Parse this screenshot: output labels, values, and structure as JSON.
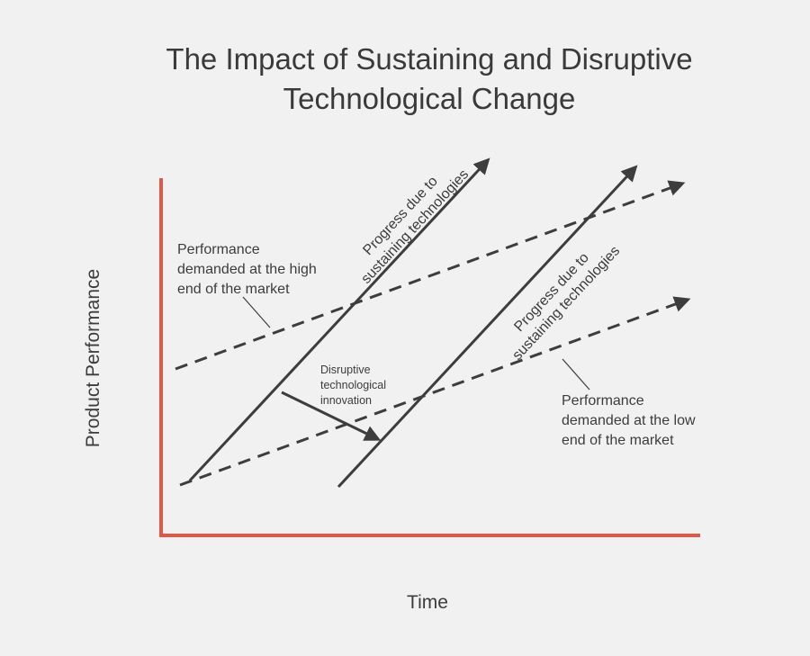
{
  "title": {
    "line1": "The Impact of Sustaining and Disruptive",
    "line2": "Technological Change"
  },
  "axes": {
    "x_label": "Time",
    "y_label": "Product Performance",
    "color": "#e0584a"
  },
  "labels": {
    "high_end": [
      "Performance",
      "demanded at the high",
      "end of the market"
    ],
    "low_end": [
      "Performance",
      "demanded at the low",
      "end of the market"
    ],
    "sustaining_1": [
      "Progress due to",
      "sustaining technologies"
    ],
    "sustaining_2": [
      "Progress due to",
      "sustaining technologies"
    ],
    "disruptive": [
      "Disruptive",
      "technological",
      "innovation"
    ]
  },
  "colors": {
    "line": "#3d3d3d",
    "background": "#f1f1f1"
  }
}
